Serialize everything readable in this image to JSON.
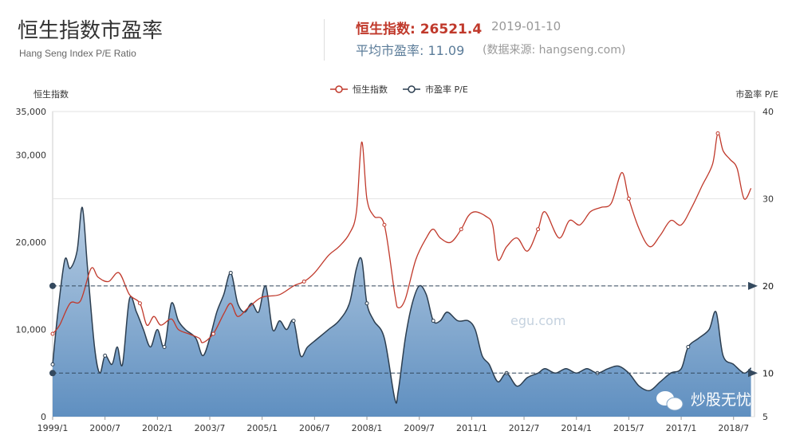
{
  "header": {
    "title": "恒生指数市盈率",
    "subtitle": "Hang Seng Index P/E Ratio",
    "index_text": "恒生指数: 26521.4",
    "date": "2019-01-10",
    "pe_text": "平均市盈率: 11.09",
    "source": "(数据来源: hangseng.com)"
  },
  "watermark": {
    "text": "炒股无忧",
    "faint": "egu.com"
  },
  "colors": {
    "index_line": "#c0392b",
    "pe_line": "#2c3e50",
    "pe_fill_top": "#b7cde3",
    "pe_fill_bottom": "#5f8fc0",
    "markline": "#34495e"
  },
  "chart_data": {
    "type": "line",
    "legend": [
      "恒生指数",
      "市盈率 P/E"
    ],
    "legend_position": "top-center",
    "y_left": {
      "label": "恒生指数",
      "range": [
        0,
        35000
      ],
      "ticks": [
        "0",
        "10,000",
        "20,000",
        "30,000",
        "35,000"
      ]
    },
    "y_right": {
      "label": "市盈率 P/E",
      "range": [
        5,
        40
      ],
      "ticks": [
        "5",
        "10",
        "20",
        "30",
        "40"
      ]
    },
    "x": {
      "range": [
        1999.0,
        2019.1
      ],
      "ticks": [
        "1999/1",
        "2000/7",
        "2002/1",
        "2003/7",
        "2005/1",
        "2006/7",
        "2008/1",
        "2009/7",
        "2011/1",
        "2012/7",
        "2014/1",
        "2015/7",
        "2017/1",
        "2018/7"
      ]
    },
    "mark_lines": [
      {
        "axis": "right",
        "value": 20,
        "label": "20"
      },
      {
        "axis": "right",
        "value": 10,
        "label": "10"
      }
    ],
    "series": [
      {
        "name": "恒生指数",
        "axis": "left",
        "points": [
          [
            1999.0,
            9500
          ],
          [
            1999.2,
            10500
          ],
          [
            1999.5,
            13000
          ],
          [
            1999.8,
            13300
          ],
          [
            2000.1,
            17000
          ],
          [
            2000.3,
            16000
          ],
          [
            2000.6,
            15500
          ],
          [
            2000.9,
            16500
          ],
          [
            2001.2,
            14000
          ],
          [
            2001.5,
            13000
          ],
          [
            2001.7,
            10500
          ],
          [
            2001.9,
            11500
          ],
          [
            2002.1,
            10500
          ],
          [
            2002.4,
            11200
          ],
          [
            2002.6,
            10000
          ],
          [
            2002.9,
            9500
          ],
          [
            2003.2,
            9000
          ],
          [
            2003.3,
            8500
          ],
          [
            2003.6,
            9500
          ],
          [
            2003.9,
            11800
          ],
          [
            2004.1,
            13000
          ],
          [
            2004.3,
            11500
          ],
          [
            2004.6,
            12500
          ],
          [
            2004.9,
            13500
          ],
          [
            2005.1,
            13800
          ],
          [
            2005.5,
            14000
          ],
          [
            2005.9,
            15000
          ],
          [
            2006.2,
            15500
          ],
          [
            2006.5,
            16500
          ],
          [
            2006.9,
            18500
          ],
          [
            2007.2,
            19500
          ],
          [
            2007.5,
            21000
          ],
          [
            2007.7,
            23500
          ],
          [
            2007.85,
            31500
          ],
          [
            2008.0,
            25000
          ],
          [
            2008.2,
            23000
          ],
          [
            2008.5,
            22000
          ],
          [
            2008.8,
            14000
          ],
          [
            2008.9,
            12500
          ],
          [
            2009.1,
            13500
          ],
          [
            2009.4,
            18000
          ],
          [
            2009.7,
            20500
          ],
          [
            2009.9,
            21500
          ],
          [
            2010.1,
            20500
          ],
          [
            2010.4,
            20000
          ],
          [
            2010.7,
            21500
          ],
          [
            2010.9,
            23000
          ],
          [
            2011.1,
            23500
          ],
          [
            2011.4,
            23000
          ],
          [
            2011.6,
            22000
          ],
          [
            2011.75,
            18000
          ],
          [
            2012.0,
            19500
          ],
          [
            2012.3,
            20500
          ],
          [
            2012.6,
            19000
          ],
          [
            2012.9,
            21500
          ],
          [
            2013.1,
            23500
          ],
          [
            2013.5,
            20500
          ],
          [
            2013.8,
            22500
          ],
          [
            2014.1,
            22000
          ],
          [
            2014.4,
            23500
          ],
          [
            2014.7,
            24000
          ],
          [
            2015.0,
            24500
          ],
          [
            2015.3,
            28000
          ],
          [
            2015.5,
            25000
          ],
          [
            2015.8,
            21500
          ],
          [
            2016.1,
            19500
          ],
          [
            2016.4,
            20800
          ],
          [
            2016.7,
            22500
          ],
          [
            2017.0,
            22000
          ],
          [
            2017.3,
            24000
          ],
          [
            2017.6,
            26500
          ],
          [
            2017.9,
            29000
          ],
          [
            2018.05,
            32500
          ],
          [
            2018.2,
            30500
          ],
          [
            2018.4,
            29500
          ],
          [
            2018.6,
            28500
          ],
          [
            2018.8,
            25000
          ],
          [
            2019.0,
            26200
          ]
        ]
      },
      {
        "name": "市盈率 P/E",
        "axis": "right",
        "points": [
          [
            1999.0,
            11
          ],
          [
            1999.15,
            17
          ],
          [
            1999.35,
            23
          ],
          [
            1999.5,
            22
          ],
          [
            1999.7,
            24
          ],
          [
            1999.85,
            29
          ],
          [
            2000.0,
            22
          ],
          [
            2000.2,
            13
          ],
          [
            2000.35,
            10
          ],
          [
            2000.5,
            12
          ],
          [
            2000.7,
            11
          ],
          [
            2000.85,
            13
          ],
          [
            2001.0,
            11
          ],
          [
            2001.2,
            18.5
          ],
          [
            2001.4,
            17
          ],
          [
            2001.6,
            15
          ],
          [
            2001.8,
            13
          ],
          [
            2002.0,
            15
          ],
          [
            2002.2,
            13
          ],
          [
            2002.4,
            18
          ],
          [
            2002.6,
            16
          ],
          [
            2002.8,
            15
          ],
          [
            2003.1,
            14
          ],
          [
            2003.3,
            12
          ],
          [
            2003.5,
            14
          ],
          [
            2003.7,
            17
          ],
          [
            2003.9,
            19
          ],
          [
            2004.1,
            21.5
          ],
          [
            2004.3,
            18
          ],
          [
            2004.5,
            17
          ],
          [
            2004.7,
            18
          ],
          [
            2004.9,
            17
          ],
          [
            2005.1,
            20
          ],
          [
            2005.3,
            15
          ],
          [
            2005.5,
            16
          ],
          [
            2005.7,
            15
          ],
          [
            2005.9,
            16
          ],
          [
            2006.1,
            12
          ],
          [
            2006.3,
            13
          ],
          [
            2006.6,
            14
          ],
          [
            2006.9,
            15
          ],
          [
            2007.2,
            16
          ],
          [
            2007.5,
            18
          ],
          [
            2007.7,
            22
          ],
          [
            2007.85,
            23
          ],
          [
            2008.0,
            18
          ],
          [
            2008.2,
            16
          ],
          [
            2008.5,
            14
          ],
          [
            2008.8,
            7
          ],
          [
            2008.9,
            8
          ],
          [
            2009.1,
            14
          ],
          [
            2009.3,
            18
          ],
          [
            2009.5,
            20
          ],
          [
            2009.7,
            19
          ],
          [
            2009.9,
            16
          ],
          [
            2010.1,
            16
          ],
          [
            2010.3,
            17
          ],
          [
            2010.6,
            16
          ],
          [
            2010.9,
            16
          ],
          [
            2011.1,
            15
          ],
          [
            2011.3,
            12
          ],
          [
            2011.5,
            11
          ],
          [
            2011.75,
            9
          ],
          [
            2012.0,
            10
          ],
          [
            2012.3,
            8.5
          ],
          [
            2012.6,
            9.5
          ],
          [
            2012.9,
            10
          ],
          [
            2013.1,
            10.5
          ],
          [
            2013.4,
            10
          ],
          [
            2013.7,
            10.5
          ],
          [
            2014.0,
            10
          ],
          [
            2014.3,
            10.5
          ],
          [
            2014.6,
            10
          ],
          [
            2014.9,
            10.5
          ],
          [
            2015.2,
            10.8
          ],
          [
            2015.5,
            10
          ],
          [
            2015.8,
            8.5
          ],
          [
            2016.1,
            8
          ],
          [
            2016.4,
            9
          ],
          [
            2016.7,
            10
          ],
          [
            2017.0,
            10.5
          ],
          [
            2017.2,
            13
          ],
          [
            2017.5,
            14
          ],
          [
            2017.8,
            15
          ],
          [
            2018.0,
            17
          ],
          [
            2018.2,
            12
          ],
          [
            2018.5,
            11
          ],
          [
            2018.8,
            10
          ],
          [
            2019.0,
            10.6
          ]
        ]
      }
    ]
  }
}
